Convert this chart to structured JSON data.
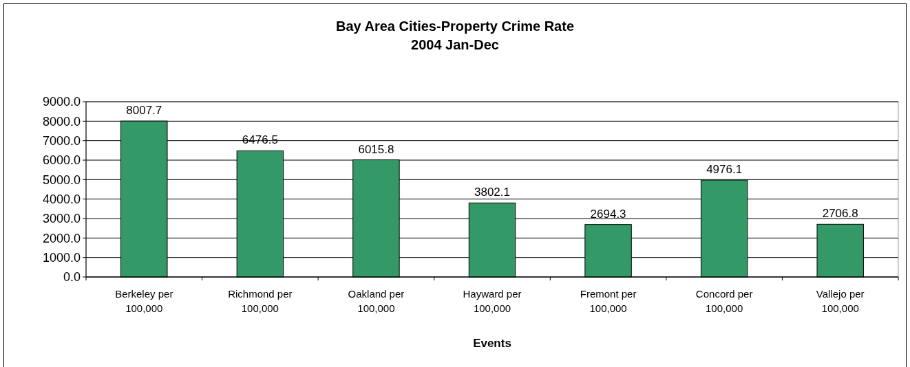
{
  "chart_data": {
    "type": "bar",
    "title": "Bay Area Cities-Property Crime Rate",
    "subtitle": "2004 Jan-Dec",
    "xlabel": "Events",
    "categories": [
      "Berkeley per 100,000",
      "Richmond per 100,000",
      "Oakland per 100,000",
      "Hayward per 100,000",
      "Fremont per 100,000",
      "Concord per 100,000",
      "Vallejo per 100,000"
    ],
    "values": [
      8007.7,
      6476.5,
      6015.8,
      3802.1,
      2694.3,
      4976.1,
      2706.8
    ],
    "color": "#339966",
    "ylim": [
      0,
      9000
    ],
    "yticks": [
      {
        "value": 0,
        "label": "0.0"
      },
      {
        "value": 1000,
        "label": "1000.0"
      },
      {
        "value": 2000,
        "label": "2000.0"
      },
      {
        "value": 3000,
        "label": "3000.0"
      },
      {
        "value": 4000,
        "label": "4000.0"
      },
      {
        "value": 5000,
        "label": "5000.0"
      },
      {
        "value": 6000,
        "label": "6000.0"
      },
      {
        "value": 7000,
        "label": "7000.0"
      },
      {
        "value": 8000,
        "label": "8000.0"
      },
      {
        "value": 9000,
        "label": "9000.0"
      }
    ],
    "grid": "y",
    "data_labels": true
  }
}
